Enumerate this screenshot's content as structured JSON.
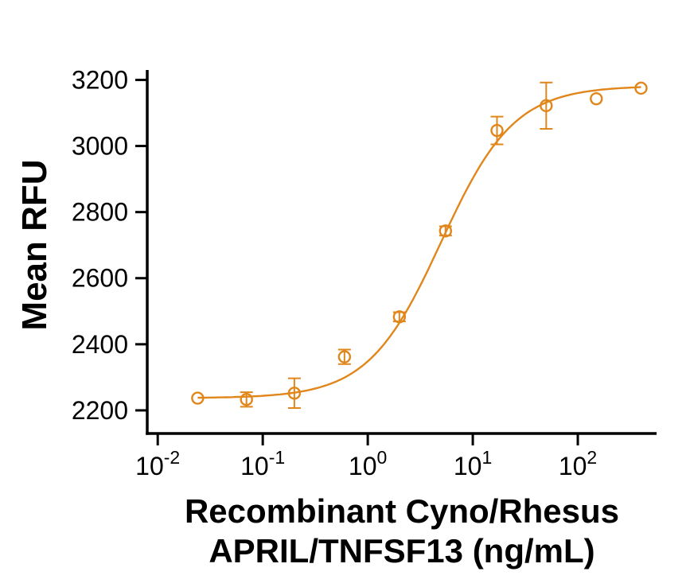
{
  "chart_data": {
    "type": "scatter",
    "title": "",
    "ylabel": "Mean RFU",
    "xlabel_line1": "Recombinant Cyno/Rhesus",
    "xlabel_line2": "APRIL/TNFSF13 (ng/mL)",
    "x_scale": "log10",
    "xlim_log": [
      -2.1,
      2.75
    ],
    "ylim": [
      2130,
      3230
    ],
    "y_ticks": [
      2200,
      2400,
      2600,
      2800,
      3000,
      3200
    ],
    "x_ticks": [
      {
        "value": 0.01,
        "base": "10",
        "exp": "-2"
      },
      {
        "value": 0.1,
        "base": "10",
        "exp": "-1"
      },
      {
        "value": 1,
        "base": "10",
        "exp": "0"
      },
      {
        "value": 10,
        "base": "10",
        "exp": "1"
      },
      {
        "value": 100,
        "base": "10",
        "exp": "2"
      }
    ],
    "grid": false,
    "legend": "none",
    "axis_color": "#000000",
    "series": [
      {
        "name": "Mean RFU",
        "color": "#E1861B",
        "marker": "open-circle",
        "points": [
          {
            "x": 0.024,
            "y": 2237,
            "err": 0
          },
          {
            "x": 0.07,
            "y": 2233,
            "err": 22
          },
          {
            "x": 0.2,
            "y": 2252,
            "err": 45
          },
          {
            "x": 0.6,
            "y": 2362,
            "err": 22
          },
          {
            "x": 2.0,
            "y": 2483,
            "err": 14
          },
          {
            "x": 5.5,
            "y": 2743,
            "err": 14
          },
          {
            "x": 17,
            "y": 3047,
            "err": 42
          },
          {
            "x": 50,
            "y": 3122,
            "err": 70
          },
          {
            "x": 150,
            "y": 3143,
            "err": 0
          },
          {
            "x": 400,
            "y": 3175,
            "err": 0
          }
        ]
      }
    ],
    "fit": {
      "model": "4PL",
      "bottom": 2237,
      "top": 3182,
      "ec50": 5.0,
      "hill": 1.25
    }
  }
}
